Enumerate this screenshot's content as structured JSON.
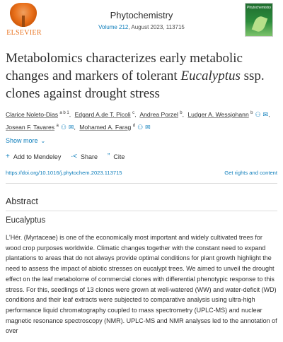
{
  "header": {
    "publisher": "ELSEVIER",
    "journal": "Phytochemistry",
    "volume_link": "Volume 212",
    "issue_info": ", August 2023, 113715",
    "cover_title": "Phytochemistry"
  },
  "article": {
    "title_line1": "Metabolomics characterizes early metabolic",
    "title_line2_pre": "changes and markers of tolerant ",
    "title_line2_italic": "Eucalyptus",
    "title_line2_post": " ssp.",
    "title_line3": "clones against drought stress"
  },
  "authors": [
    {
      "name": "Clarice Noleto-Dias",
      "aff": "a b 1",
      "person": true,
      "mail": false
    },
    {
      "name": "Edgard A.de T. Picoli",
      "aff": "c",
      "person": false,
      "mail": false
    },
    {
      "name": "Andrea Porzel",
      "aff": "b",
      "person": false,
      "mail": false
    },
    {
      "name": "Ludger A. Wessjohann",
      "aff": "b",
      "person": true,
      "mail": true
    },
    {
      "name": "Josean F. Tavares",
      "aff": "a",
      "person": true,
      "mail": true
    },
    {
      "name": "Mohamed A. Farag",
      "aff": "d",
      "person": true,
      "mail": true
    }
  ],
  "controls": {
    "show_more": "Show more",
    "add_mendeley": "Add to Mendeley",
    "share": "Share",
    "cite": "Cite"
  },
  "doi": "https://doi.org/10.1016/j.phytochem.2023.113715",
  "rights": "Get rights and content",
  "abstract": {
    "heading": "Abstract",
    "subheading": "Eucalyptus",
    "text": "L'Hér. (Myrtaceae) is one of the economically most important and widely cultivated trees for wood crop purposes worldwide. Climatic changes together with the constant need to expand plantations to areas that do not always provide optimal conditions for plant growth highlight the need to assess the impact of abiotic stresses on eucalypt trees. We aimed to unveil the drought effect on the leaf metabolome of commercial clones with differential phenotypic response to this stress. For this, seedlings of 13 clones were grown at well-watered (WW) and water-deficit (WD) conditions and their leaf extracts were subjected to comparative analysis using ultra-high performance liquid chromatography coupled to mass spectrometry (UPLC-MS) and nuclear magnetic resonance spectroscopy (NMR). UPLC-MS and NMR analyses led to the annotation of over"
  },
  "colors": {
    "link": "#0c7dbb",
    "text": "#2e2e2e",
    "publisher": "#e9711c"
  }
}
